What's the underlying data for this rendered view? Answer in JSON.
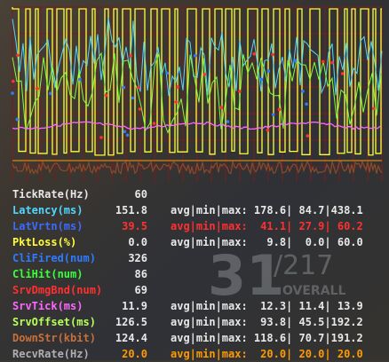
{
  "colors": {
    "grid": "#7a1d1d",
    "yellow": "#ffff3a",
    "cyan": "#4fd8ff",
    "green": "#7cff3a",
    "magenta": "#ff66ff",
    "brown": "#8a4b2a",
    "white": "#e8e8e8",
    "red": "#ff3030",
    "orange": "#ff9a00",
    "blue": "#2f7bff"
  },
  "hud": {
    "score": "31",
    "total": "/217",
    "mode": "OVERALL"
  },
  "netgraph": {
    "rows": [
      {
        "label": "TickRate(Hz)",
        "label_color": "#e8e8e8",
        "value": "60",
        "value_color": "#e8e8e8",
        "extra": "",
        "extra_color": "#e8e8e8"
      },
      {
        "label": "Latency(ms)",
        "label_color": "#4fd8ff",
        "value": "151.8",
        "value_color": "#e8e8e8",
        "extra": "avg|min|max: 178.6| 84.7|438.1",
        "extra_color": "#e8e8e8"
      },
      {
        "label": "LatVrtn(ms)",
        "label_color": "#3b6bff",
        "value": "39.5",
        "value_color": "#ff3030",
        "extra": "avg|min|max:  41.1| 27.9| 60.2",
        "extra_color": "#ff3030"
      },
      {
        "label": "PktLoss(%)",
        "label_color": "#ffff3a",
        "value": "0.0",
        "value_color": "#e8e8e8",
        "extra": "avg|min|max:   9.8|  0.0| 60.0",
        "extra_color": "#e8e8e8"
      },
      {
        "label": "CliFired(num)",
        "label_color": "#2f7bff",
        "value": "326",
        "value_color": "#e8e8e8",
        "extra": "",
        "extra_color": "#e8e8e8"
      },
      {
        "label": "CliHit(num)",
        "label_color": "#3aff3a",
        "value": "86",
        "value_color": "#e8e8e8",
        "extra": "",
        "extra_color": "#e8e8e8"
      },
      {
        "label": "SrvDmgBnd(num)",
        "label_color": "#ff3030",
        "value": "69",
        "value_color": "#e8e8e8",
        "extra": "",
        "extra_color": "#e8e8e8"
      },
      {
        "label": "SrvTick(ms)",
        "label_color": "#ff66ff",
        "value": "11.9",
        "value_color": "#e8e8e8",
        "extra": "avg|min|max:  12.3| 11.4| 13.9",
        "extra_color": "#e8e8e8"
      },
      {
        "label": "SrvOffset(ms)",
        "label_color": "#b8ff5a",
        "value": "126.5",
        "value_color": "#e8e8e8",
        "extra": "avg|min|max:  93.8| 45.5|192.2",
        "extra_color": "#e8e8e8"
      },
      {
        "label": "DownStr(kbit)",
        "label_color": "#c8703a",
        "value": "124.4",
        "value_color": "#e8e8e8",
        "extra": "avg|min|max: 118.6| 70.7|191.2",
        "extra_color": "#e8e8e8"
      },
      {
        "label": "RecvRate(Hz)",
        "label_color": "#b0b0b0",
        "value": "20.0",
        "value_color": "#ff9a00",
        "extra": "avg|min|max:  20.0| 20.0| 20.0",
        "extra_color": "#ff9a00"
      }
    ]
  }
}
